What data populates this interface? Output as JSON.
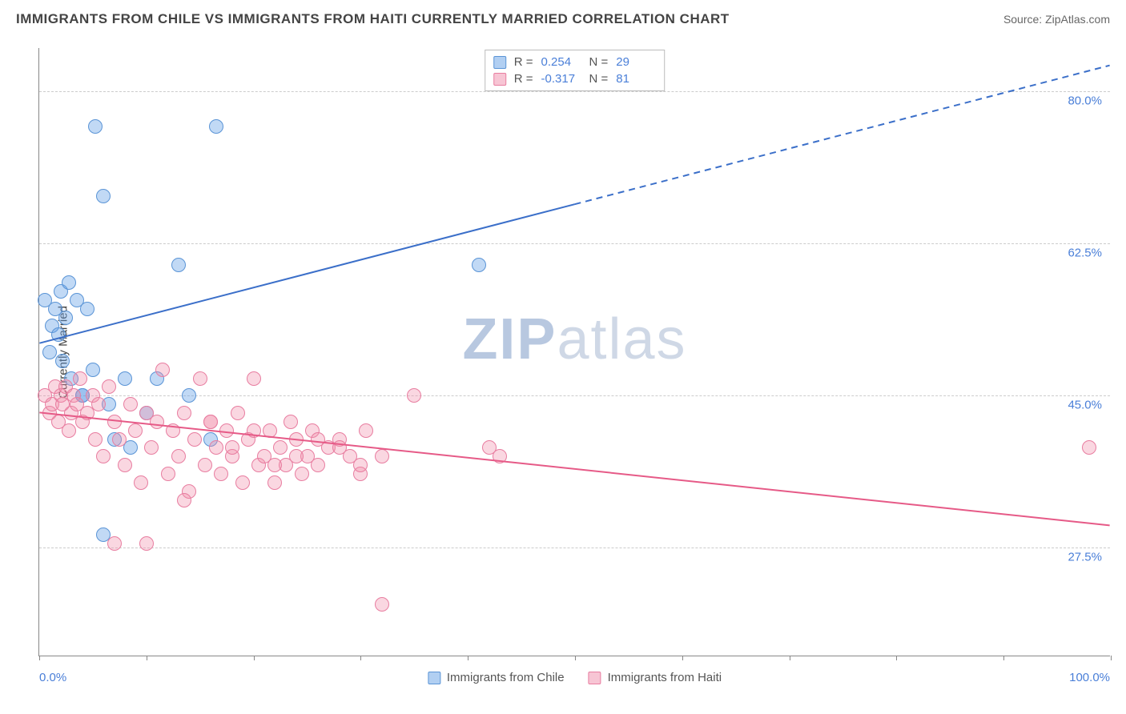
{
  "title": "IMMIGRANTS FROM CHILE VS IMMIGRANTS FROM HAITI CURRENTLY MARRIED CORRELATION CHART",
  "source_label": "Source: ZipAtlas.com",
  "watermark_main": "ZIP",
  "watermark_sub": "atlas",
  "y_axis_title": "Currently Married",
  "chart": {
    "type": "scatter",
    "background_color": "#ffffff",
    "grid_color": "#cccccc",
    "xlim": [
      0,
      100
    ],
    "ylim": [
      15,
      85
    ],
    "y_ticks": [
      27.5,
      45.0,
      62.5,
      80.0
    ],
    "y_tick_labels": [
      "27.5%",
      "45.0%",
      "62.5%",
      "80.0%"
    ],
    "x_ticks": [
      0,
      10,
      20,
      30,
      40,
      50,
      60,
      70,
      80,
      90,
      100
    ],
    "x_label_min": "0.0%",
    "x_label_max": "100.0%",
    "marker_radius": 9,
    "marker_opacity": 0.4,
    "series": [
      {
        "name": "Immigrants from Chile",
        "color_fill": "#64a0e6",
        "color_stroke": "#5a94d6",
        "r": "0.254",
        "n": "29",
        "trend": {
          "x1": 0,
          "y1": 51,
          "x2": 50,
          "y2": 67,
          "x2_ext": 100,
          "y2_ext": 83,
          "dashed_from": 50,
          "color": "#3b6fc9",
          "width": 2
        },
        "points": [
          [
            0.5,
            56
          ],
          [
            1,
            50
          ],
          [
            1.2,
            53
          ],
          [
            1.5,
            55
          ],
          [
            1.8,
            52
          ],
          [
            2,
            57
          ],
          [
            2.2,
            49
          ],
          [
            2.5,
            54
          ],
          [
            2.8,
            58
          ],
          [
            3,
            47
          ],
          [
            3.5,
            56
          ],
          [
            4,
            45
          ],
          [
            4.5,
            55
          ],
          [
            5,
            48
          ],
          [
            5.2,
            76
          ],
          [
            6,
            68
          ],
          [
            6.5,
            44
          ],
          [
            7,
            40
          ],
          [
            8,
            47
          ],
          [
            8.5,
            39
          ],
          [
            10,
            43
          ],
          [
            11,
            47
          ],
          [
            13,
            60
          ],
          [
            14,
            45
          ],
          [
            16,
            40
          ],
          [
            6,
            29
          ],
          [
            16.5,
            76
          ],
          [
            4,
            45
          ],
          [
            41,
            60
          ]
        ]
      },
      {
        "name": "Immigrants from Haiti",
        "color_fill": "#f08caa",
        "color_stroke": "#e87da0",
        "r": "-0.317",
        "n": "81",
        "trend": {
          "x1": 0,
          "y1": 43,
          "x2": 100,
          "y2": 30,
          "dashed_from": 100,
          "color": "#e65a87",
          "width": 2
        },
        "points": [
          [
            0.5,
            45
          ],
          [
            1,
            43
          ],
          [
            1.2,
            44
          ],
          [
            1.5,
            46
          ],
          [
            1.8,
            42
          ],
          [
            2,
            45
          ],
          [
            2.2,
            44
          ],
          [
            2.5,
            46
          ],
          [
            2.8,
            41
          ],
          [
            3,
            43
          ],
          [
            3.2,
            45
          ],
          [
            3.5,
            44
          ],
          [
            3.8,
            47
          ],
          [
            4,
            42
          ],
          [
            4.5,
            43
          ],
          [
            5,
            45
          ],
          [
            5.2,
            40
          ],
          [
            5.5,
            44
          ],
          [
            6,
            38
          ],
          [
            6.5,
            46
          ],
          [
            7,
            42
          ],
          [
            7.5,
            40
          ],
          [
            8,
            37
          ],
          [
            8.5,
            44
          ],
          [
            9,
            41
          ],
          [
            9.5,
            35
          ],
          [
            10,
            43
          ],
          [
            10.5,
            39
          ],
          [
            11,
            42
          ],
          [
            11.5,
            48
          ],
          [
            12,
            36
          ],
          [
            12.5,
            41
          ],
          [
            13,
            38
          ],
          [
            13.5,
            43
          ],
          [
            14,
            34
          ],
          [
            14.5,
            40
          ],
          [
            15,
            47
          ],
          [
            15.5,
            37
          ],
          [
            16,
            42
          ],
          [
            16.5,
            39
          ],
          [
            17,
            36
          ],
          [
            17.5,
            41
          ],
          [
            18,
            38
          ],
          [
            18.5,
            43
          ],
          [
            19,
            35
          ],
          [
            19.5,
            40
          ],
          [
            20,
            47
          ],
          [
            20.5,
            37
          ],
          [
            21,
            38
          ],
          [
            21.5,
            41
          ],
          [
            22,
            35
          ],
          [
            22.5,
            39
          ],
          [
            23,
            37
          ],
          [
            23.5,
            42
          ],
          [
            24,
            40
          ],
          [
            24.5,
            36
          ],
          [
            25,
            38
          ],
          [
            25.5,
            41
          ],
          [
            26,
            37
          ],
          [
            27,
            39
          ],
          [
            28,
            40
          ],
          [
            29,
            38
          ],
          [
            30,
            36
          ],
          [
            30.5,
            41
          ],
          [
            7,
            28
          ],
          [
            10,
            28
          ],
          [
            13.5,
            33
          ],
          [
            32,
            21
          ],
          [
            35,
            45
          ],
          [
            42,
            39
          ],
          [
            43,
            38
          ],
          [
            16,
            42
          ],
          [
            18,
            39
          ],
          [
            20,
            41
          ],
          [
            22,
            37
          ],
          [
            24,
            38
          ],
          [
            26,
            40
          ],
          [
            28,
            39
          ],
          [
            30,
            37
          ],
          [
            32,
            38
          ],
          [
            98,
            39
          ]
        ]
      }
    ]
  },
  "legend_top": {
    "r_prefix": "R = ",
    "n_prefix": "N = "
  },
  "legend_bottom": {
    "series1_label": "Immigrants from Chile",
    "series2_label": "Immigrants from Haiti"
  }
}
